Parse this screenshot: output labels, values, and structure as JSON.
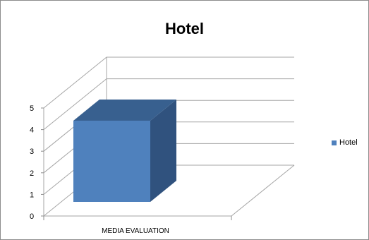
{
  "chart_data": {
    "type": "bar",
    "title": "Hotel",
    "categories": [
      "MEDIA EVALUATION"
    ],
    "series": [
      {
        "name": "Hotel",
        "values": [
          4
        ],
        "color": "#4F81BD"
      }
    ],
    "ylim": [
      0,
      5
    ],
    "yticks": [
      "0",
      "1",
      "2",
      "3",
      "4",
      "5"
    ],
    "grid": true,
    "legend": "right",
    "style": "3d"
  }
}
